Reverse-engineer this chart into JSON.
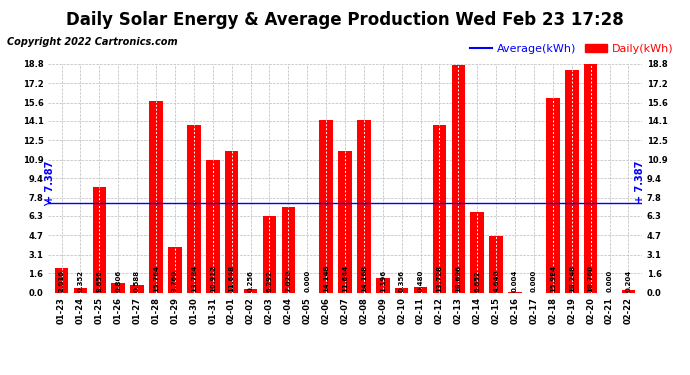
{
  "title": "Daily Solar Energy & Average Production Wed Feb 23 17:28",
  "copyright": "Copyright 2022 Cartronics.com",
  "average_value": 7.387,
  "average_label": "Average(kWh)",
  "daily_label": "Daily(kWh)",
  "bar_color": "#ff0000",
  "average_line_color": "#0000ff",
  "average_text_color": "#0000ff",
  "daily_text_color": "#ff0000",
  "background_color": "#ffffff",
  "grid_color": "#bbbbbb",
  "title_color": "#000000",
  "categories": [
    "01-23",
    "01-24",
    "01-25",
    "01-26",
    "01-27",
    "01-28",
    "01-29",
    "01-30",
    "01-31",
    "02-01",
    "02-02",
    "02-03",
    "02-04",
    "02-05",
    "02-06",
    "02-07",
    "02-08",
    "02-09",
    "02-10",
    "02-11",
    "02-12",
    "02-13",
    "02-14",
    "02-15",
    "02-16",
    "02-17",
    "02-18",
    "02-19",
    "02-20",
    "02-21",
    "02-22"
  ],
  "values": [
    2.016,
    0.352,
    8.656,
    0.806,
    0.588,
    15.764,
    3.76,
    13.784,
    10.912,
    11.648,
    0.256,
    6.292,
    7.02,
    0.0,
    14.148,
    11.644,
    14.168,
    1.196,
    0.356,
    0.48,
    13.728,
    18.696,
    6.652,
    4.64,
    0.004,
    0.0,
    15.984,
    18.248,
    18.76,
    0.0,
    0.204
  ],
  "ylim": [
    0.0,
    18.8
  ],
  "yticks": [
    0.0,
    1.6,
    3.1,
    4.7,
    6.3,
    7.8,
    9.4,
    10.9,
    12.5,
    14.1,
    15.6,
    17.2,
    18.8
  ],
  "title_fontsize": 12,
  "copyright_fontsize": 7,
  "tick_fontsize": 6,
  "bar_label_fontsize": 5,
  "legend_fontsize": 8,
  "average_fontsize": 7
}
